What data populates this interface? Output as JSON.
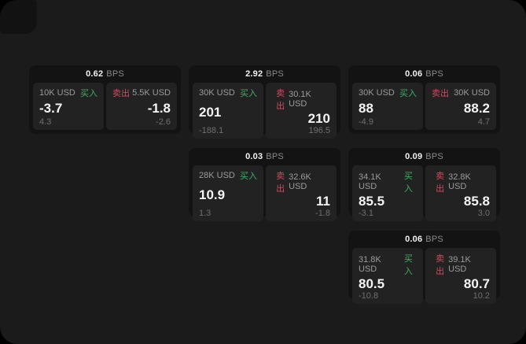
{
  "page": {
    "background": "#1b1b1b",
    "backdrop": "#000000"
  },
  "labels": {
    "bps_suffix": "BPS",
    "buy": "买入",
    "sell": "卖出"
  },
  "colors": {
    "buy_green": "#3fae6a",
    "sell_red": "#cf4a63",
    "card_bg": "#131313",
    "panel_bg": "#222222"
  },
  "cards": [
    {
      "bps": "0.62",
      "buy": {
        "amount": "10K USD",
        "value": "-3.7",
        "change": "4.3"
      },
      "sell": {
        "amount": "5.5K USD",
        "value": "-1.8",
        "change": "-2.6"
      }
    },
    {
      "bps": "2.92",
      "buy": {
        "amount": "30K USD",
        "value": "201",
        "change": "-188.1"
      },
      "sell": {
        "amount": "30.1K USD",
        "value": "210",
        "change": "196.5"
      }
    },
    {
      "bps": "0.06",
      "buy": {
        "amount": "30K USD",
        "value": "88",
        "change": "-4.9"
      },
      "sell": {
        "amount": "30K USD",
        "value": "88.2",
        "change": "4.7"
      }
    },
    {
      "bps": "0.03",
      "buy": {
        "amount": "28K USD",
        "value": "10.9",
        "change": "1.3"
      },
      "sell": {
        "amount": "32.6K USD",
        "value": "11",
        "change": "-1.8"
      }
    },
    {
      "bps": "0.09",
      "buy": {
        "amount": "34.1K USD",
        "value": "85.5",
        "change": "-3.1"
      },
      "sell": {
        "amount": "32.8K USD",
        "value": "85.8",
        "change": "3.0"
      }
    },
    {
      "bps": "0.06",
      "buy": {
        "amount": "31.8K USD",
        "value": "80.5",
        "change": "-10.8"
      },
      "sell": {
        "amount": "39.1K USD",
        "value": "80.7",
        "change": "10.2"
      }
    }
  ]
}
